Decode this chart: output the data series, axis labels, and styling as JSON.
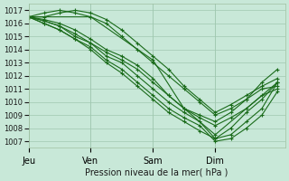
{
  "bg_color": "#c8e8d8",
  "grid_color": "#a0c8b0",
  "line_color": "#1a6b1a",
  "marker_color": "#1a6b1a",
  "xlabel": "Pression niveau de la mer( hPa )",
  "x_ticks": [
    0,
    24,
    48,
    72
  ],
  "x_tick_labels": [
    "Jeu",
    "Ven",
    "Sam",
    "Dim"
  ],
  "ylim": [
    1006.5,
    1017.5
  ],
  "xlim": [
    0,
    99
  ],
  "yticks": [
    1007,
    1008,
    1009,
    1010,
    1011,
    1012,
    1013,
    1014,
    1015,
    1016,
    1017
  ],
  "series": [
    {
      "x": [
        0,
        6,
        12,
        18,
        24,
        30,
        36,
        42,
        48,
        54,
        60,
        66,
        72,
        78,
        84,
        90,
        96
      ],
      "y": [
        1016.5,
        1016.2,
        1015.8,
        1015.0,
        1014.5,
        1013.5,
        1013.0,
        1012.0,
        1011.0,
        1010.0,
        1009.2,
        1008.5,
        1007.2,
        1007.5,
        1008.5,
        1009.5,
        1011.5
      ]
    },
    {
      "x": [
        0,
        6,
        12,
        18,
        24,
        30,
        36,
        42,
        48,
        54,
        60,
        66,
        72,
        78,
        84,
        90,
        96
      ],
      "y": [
        1016.5,
        1016.0,
        1015.5,
        1014.8,
        1014.2,
        1013.2,
        1012.5,
        1011.5,
        1010.5,
        1009.5,
        1008.8,
        1008.2,
        1007.0,
        1007.2,
        1008.0,
        1009.0,
        1010.8
      ]
    },
    {
      "x": [
        0,
        6,
        12,
        18,
        24,
        30,
        36,
        42,
        48,
        54,
        60,
        66,
        72,
        78,
        84,
        90,
        96
      ],
      "y": [
        1016.5,
        1016.3,
        1016.0,
        1015.5,
        1014.8,
        1014.0,
        1013.5,
        1012.8,
        1011.8,
        1010.5,
        1009.5,
        1009.0,
        1008.5,
        1009.2,
        1010.2,
        1011.5,
        1012.5
      ]
    },
    {
      "x": [
        0,
        6,
        12,
        18,
        24,
        30,
        36,
        42,
        48,
        54,
        60,
        66,
        72,
        78,
        84,
        90,
        96
      ],
      "y": [
        1016.5,
        1016.8,
        1017.0,
        1016.8,
        1016.5,
        1016.0,
        1015.0,
        1014.0,
        1013.0,
        1012.0,
        1011.0,
        1010.0,
        1009.0,
        1009.5,
        1010.2,
        1011.0,
        1011.2
      ]
    },
    {
      "x": [
        0,
        6,
        12,
        18,
        24,
        30,
        36,
        42,
        48,
        54,
        60,
        66,
        72,
        78,
        84,
        90,
        96
      ],
      "y": [
        1016.5,
        1016.5,
        1016.8,
        1017.0,
        1016.8,
        1016.3,
        1015.5,
        1014.5,
        1013.5,
        1012.5,
        1011.2,
        1010.2,
        1009.2,
        1009.8,
        1010.5,
        1011.2,
        1011.8
      ]
    },
    {
      "x": [
        0,
        6,
        12,
        18,
        24,
        30,
        36,
        42,
        48,
        54,
        60,
        66,
        72,
        78,
        84,
        90,
        96
      ],
      "y": [
        1016.5,
        1016.2,
        1015.8,
        1015.2,
        1014.5,
        1013.8,
        1013.2,
        1012.5,
        1011.5,
        1010.5,
        1009.5,
        1008.8,
        1008.2,
        1008.8,
        1009.5,
        1010.5,
        1011.0
      ]
    },
    {
      "x": [
        0,
        6,
        12,
        18,
        24,
        30,
        36,
        42,
        48,
        54,
        60,
        66,
        72,
        78,
        84,
        90,
        96
      ],
      "y": [
        1016.5,
        1016.0,
        1015.5,
        1014.8,
        1014.0,
        1013.0,
        1012.2,
        1011.2,
        1010.2,
        1009.2,
        1008.5,
        1007.8,
        1007.2,
        1008.0,
        1009.2,
        1010.2,
        1011.5
      ]
    },
    {
      "x": [
        0,
        24,
        48,
        60,
        72,
        96
      ],
      "y": [
        1016.5,
        1016.5,
        1013.2,
        1009.5,
        1007.5,
        1011.5
      ]
    }
  ]
}
